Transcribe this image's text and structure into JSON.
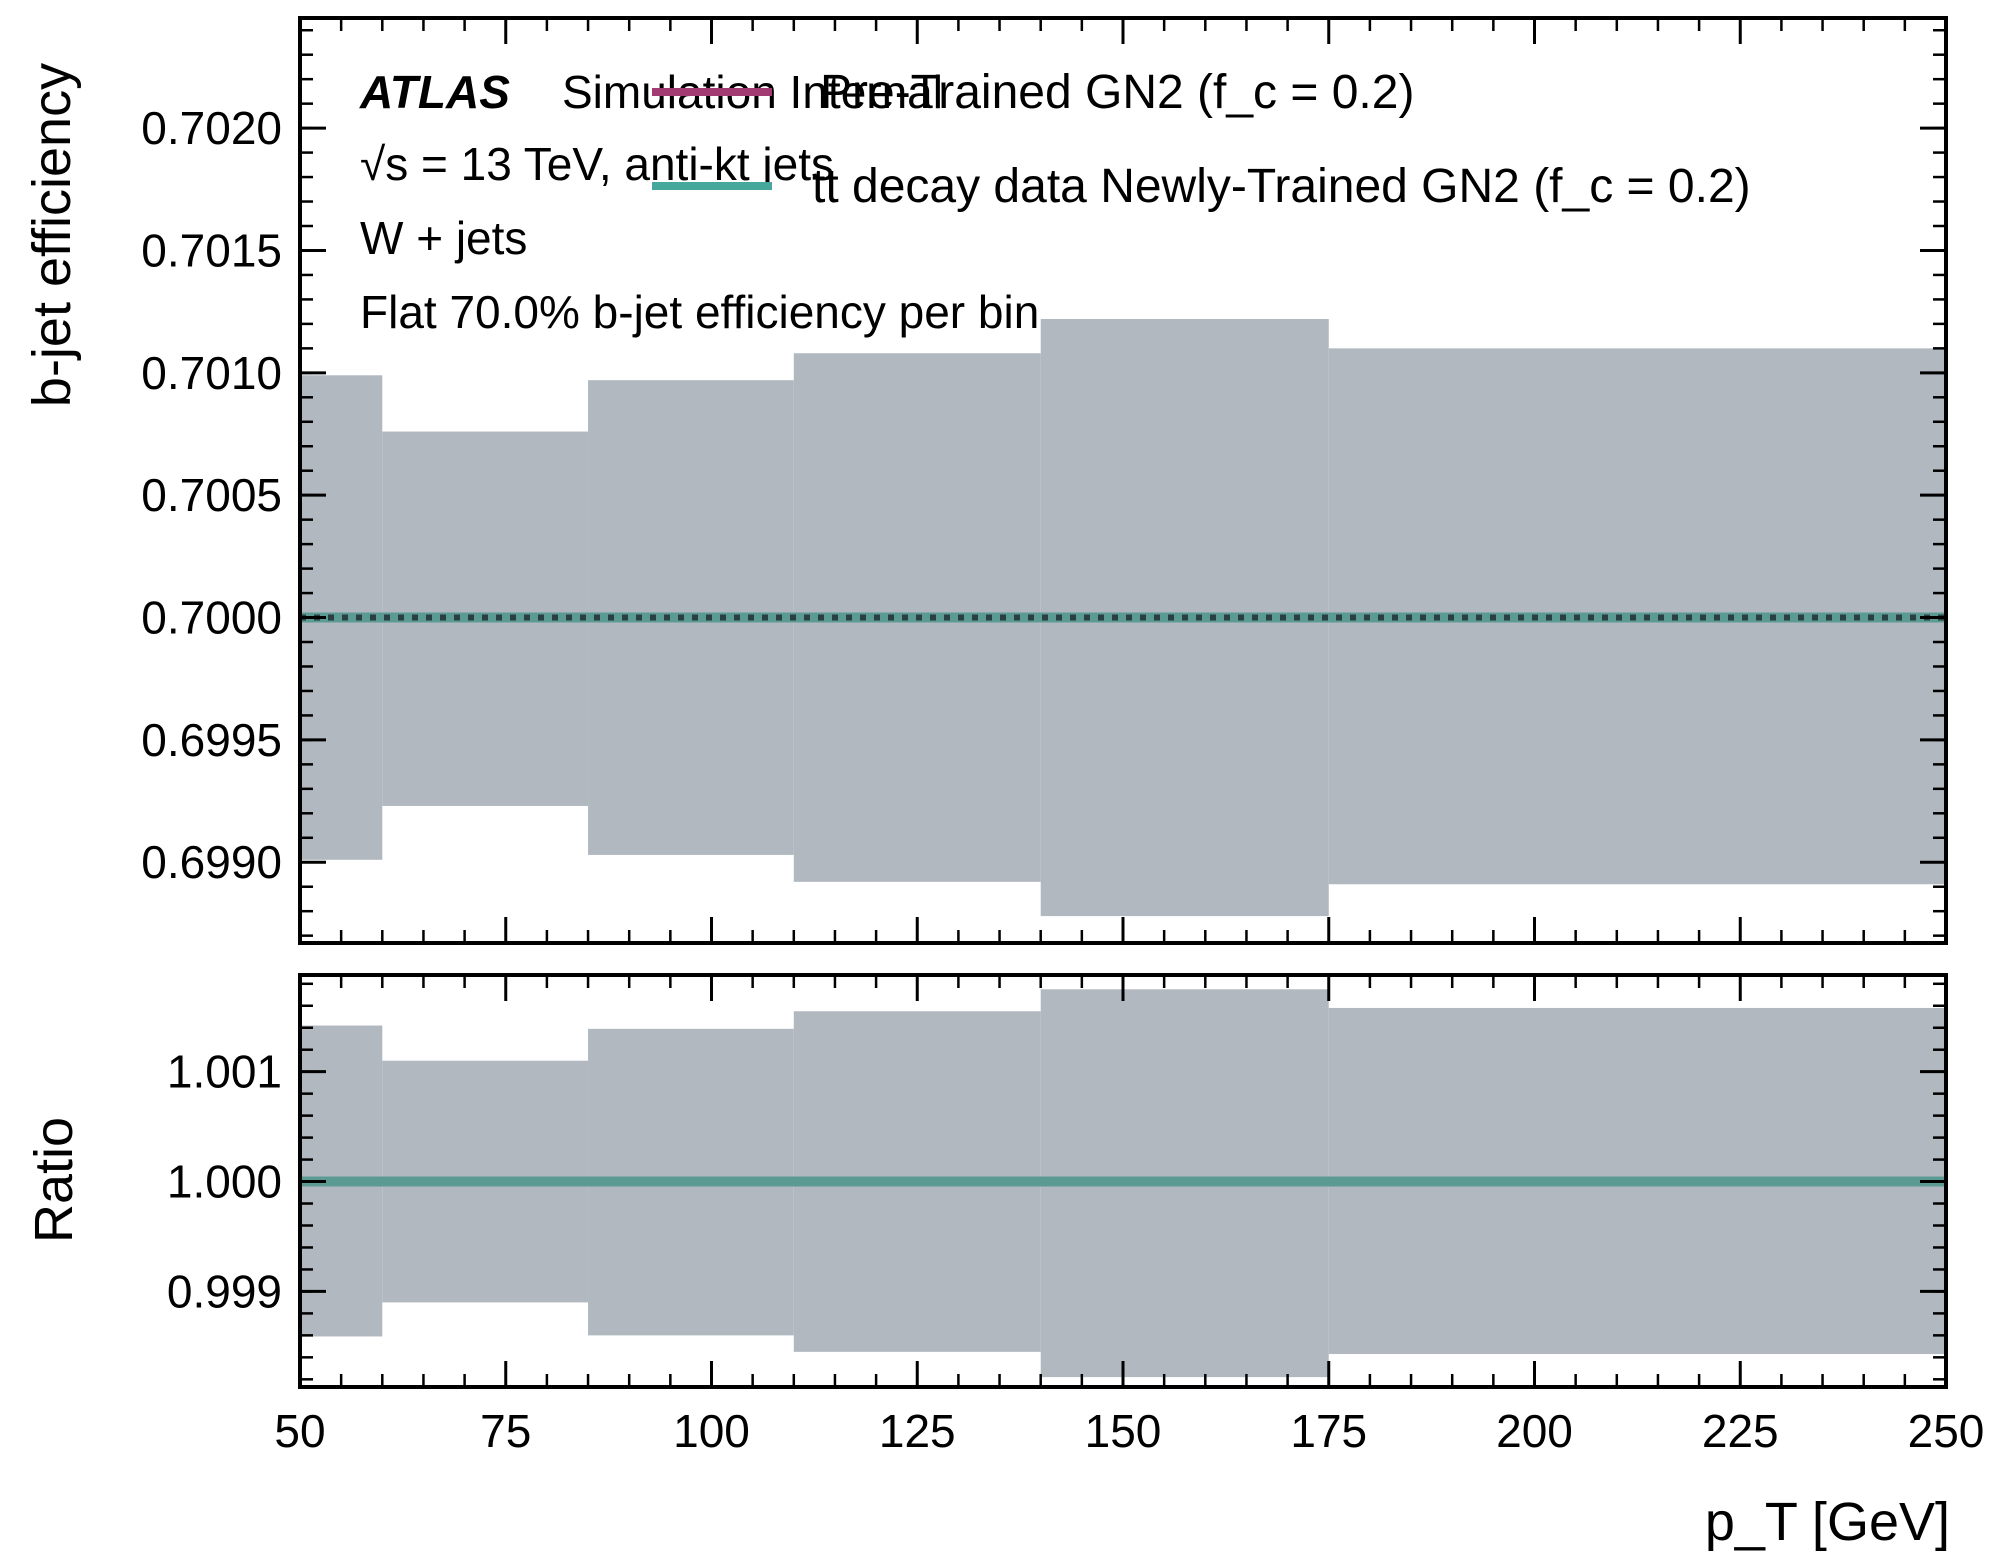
{
  "chart_data": {
    "type": "line",
    "annotations": {
      "experiment": "ATLAS",
      "status": "Simulation Internal",
      "energy": "√s = 13 TeV, anti-kt jets",
      "sample": "W + jets",
      "working_point": "Flat 70.0% b-jet efficiency per bin"
    },
    "legend": {
      "placement": "top-right",
      "entries": [
        {
          "label": "Pre-Trained GN2 (f_c = 0.2)",
          "color": "#a23b72"
        },
        {
          "label": "tt decay data Newly-Trained GN2 (f_c = 0.2)",
          "color": "#45a89a"
        }
      ]
    },
    "x_bin_edges": [
      50,
      60,
      85,
      110,
      140,
      175,
      250
    ],
    "xlim": [
      50,
      250
    ],
    "x_ticks": [
      50,
      75,
      100,
      125,
      150,
      175,
      200,
      225,
      250
    ],
    "xlabel": "p_T [GeV]",
    "grid": false,
    "colors": {
      "band": "#b1b8c0",
      "pretrained": "#a23b72",
      "newly_trained": "#45a89a",
      "ratio_line": "#5c9a94",
      "dotted": "#2a3f3f"
    },
    "top_panel": {
      "ylabel": "b-jet efficiency",
      "ylim": [
        0.69867,
        0.70245
      ],
      "y_ticks": [
        "0.6990",
        "0.6995",
        "0.7000",
        "0.7005",
        "0.7010",
        "0.7015",
        "0.7020"
      ],
      "series": [
        {
          "name": "Pre-Trained GN2 (f_c = 0.2)",
          "values": [
            0.7,
            0.7,
            0.7,
            0.7,
            0.7,
            0.7
          ],
          "style": "dotted"
        },
        {
          "name": "tt decay data Newly-Trained GN2 (f_c = 0.2)",
          "values": [
            0.7,
            0.7,
            0.7,
            0.7,
            0.7,
            0.7
          ],
          "style": "solid"
        }
      ],
      "band_upper": [
        0.70099,
        0.70076,
        0.70097,
        0.70108,
        0.70122,
        0.7011
      ],
      "band_lower": [
        0.69901,
        0.69923,
        0.69903,
        0.69892,
        0.69878,
        0.69891
      ]
    },
    "ratio_panel": {
      "ylabel": "Ratio",
      "ylim": [
        0.99813,
        1.00188
      ],
      "y_ticks": [
        "0.999",
        "1.000",
        "1.001"
      ],
      "values": [
        1.0,
        1.0,
        1.0,
        1.0,
        1.0,
        1.0
      ],
      "band_upper": [
        1.00142,
        1.0011,
        1.00139,
        1.00155,
        1.00175,
        1.00158
      ],
      "band_lower": [
        0.99859,
        0.9989,
        0.9986,
        0.99845,
        0.99822,
        0.99843
      ]
    }
  }
}
